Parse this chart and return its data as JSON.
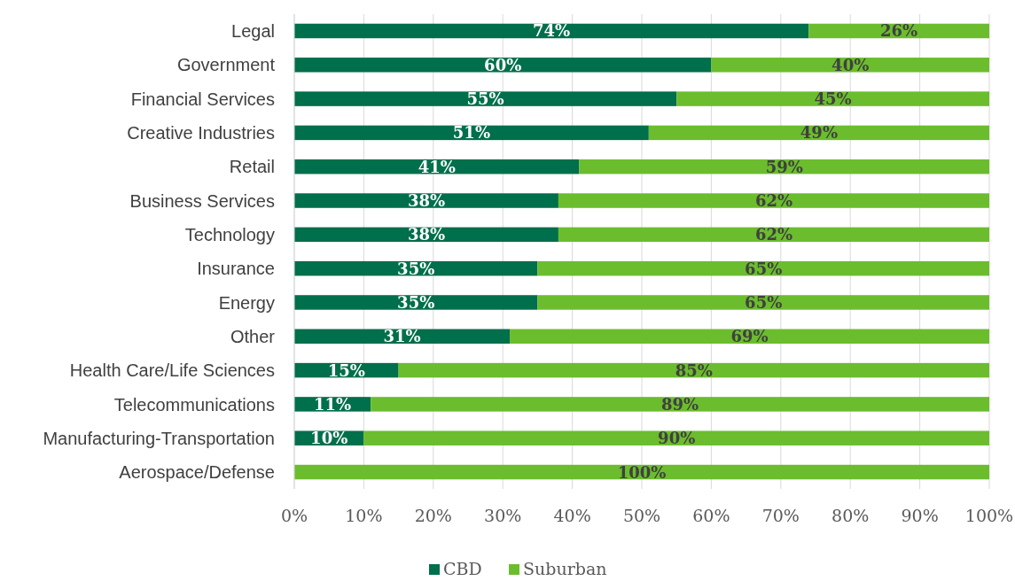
{
  "chart_data": {
    "type": "bar",
    "orientation": "horizontal",
    "stacked": true,
    "categories": [
      "Legal",
      "Government",
      "Financial Services",
      "Creative Industries",
      "Retail",
      "Business Services",
      "Technology",
      "Insurance",
      "Energy",
      "Other",
      "Health Care/Life Sciences",
      "Telecommunications",
      "Manufacturing-Transportation",
      "Aerospace/Defense"
    ],
    "series": [
      {
        "name": "CBD",
        "color": "#006f4b",
        "values": [
          74,
          60,
          55,
          51,
          41,
          38,
          38,
          35,
          35,
          31,
          15,
          11,
          10,
          0
        ],
        "value_labels": [
          "74%",
          "60%",
          "55%",
          "51%",
          "41%",
          "38%",
          "38%",
          "35%",
          "35%",
          "31%",
          "15%",
          "11%",
          "10%",
          null
        ]
      },
      {
        "name": "Suburban",
        "color": "#6bbd2d",
        "values": [
          26,
          40,
          45,
          49,
          59,
          62,
          62,
          65,
          65,
          69,
          85,
          89,
          90,
          100
        ],
        "value_labels": [
          "26%",
          "40%",
          "45%",
          "49%",
          "59%",
          "62%",
          "62%",
          "65%",
          "65%",
          "69%",
          "85%",
          "89%",
          "90%",
          "100%"
        ]
      }
    ],
    "xlim": [
      0,
      100
    ],
    "xticks": [
      {
        "value": 0,
        "label": "0%"
      },
      {
        "value": 10,
        "label": "10%"
      },
      {
        "value": 20,
        "label": "20%"
      },
      {
        "value": 30,
        "label": "30%"
      },
      {
        "value": 40,
        "label": "40%"
      },
      {
        "value": 50,
        "label": "50%"
      },
      {
        "value": 60,
        "label": "60%"
      },
      {
        "value": 70,
        "label": "70%"
      },
      {
        "value": 80,
        "label": "80%"
      },
      {
        "value": 90,
        "label": "90%"
      },
      {
        "value": 100,
        "label": "100%"
      }
    ],
    "grid": "x",
    "legend": "bottom"
  }
}
